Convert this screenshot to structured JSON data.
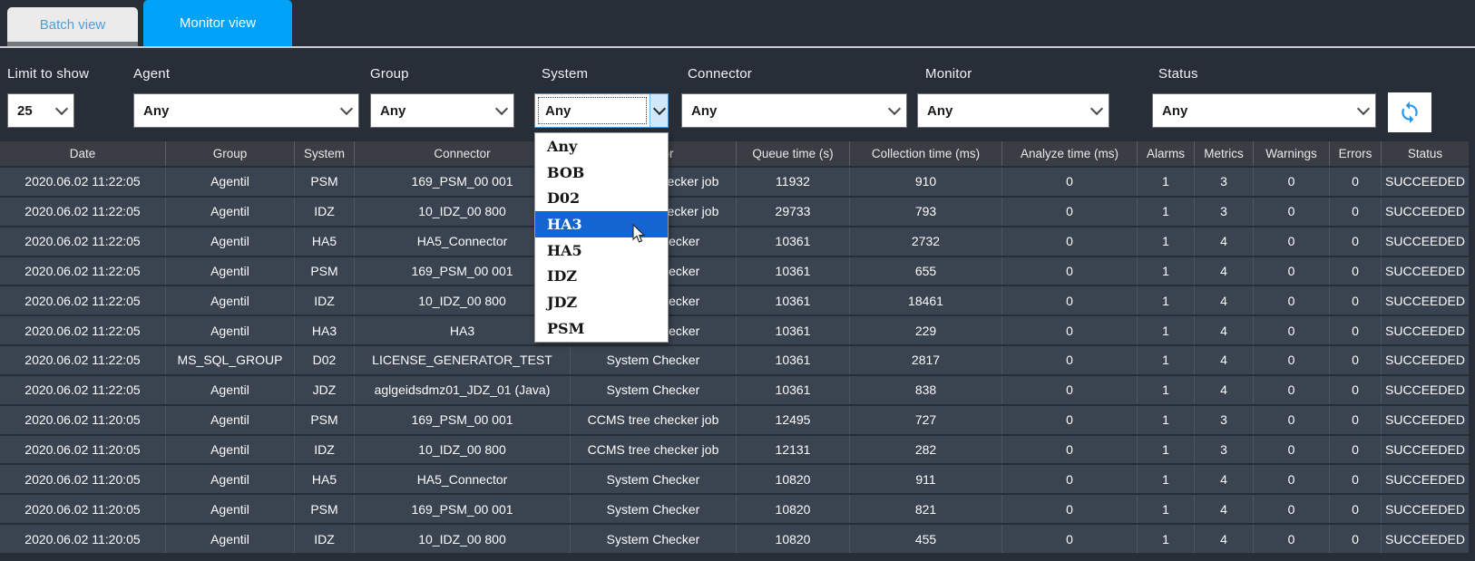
{
  "tabs": {
    "batch": "Batch view",
    "monitor": "Monitor view"
  },
  "filters": {
    "limit": {
      "label": "Limit to show",
      "value": "25"
    },
    "agent": {
      "label": "Agent",
      "value": "Any"
    },
    "group": {
      "label": "Group",
      "value": "Any"
    },
    "system": {
      "label": "System",
      "value": "Any",
      "open": true,
      "options": [
        "Any",
        "BOB",
        "D02",
        "HA3",
        "HA5",
        "IDZ",
        "JDZ",
        "PSM"
      ],
      "highlighted": "HA3"
    },
    "connector": {
      "label": "Connector",
      "value": "Any"
    },
    "monitor": {
      "label": "Monitor",
      "value": "Any"
    },
    "status": {
      "label": "Status",
      "value": "Any"
    },
    "refresh_icon": "refresh-sync-arrows"
  },
  "table": {
    "columns": [
      "Date",
      "Group",
      "System",
      "Connector",
      "Monitor",
      "Queue time (s)",
      "Collection time (ms)",
      "Analyze time (ms)",
      "Alarms",
      "Metrics",
      "Warnings",
      "Errors",
      "Status"
    ],
    "rows": [
      [
        "2020.06.02 11:22:05",
        "Agentil",
        "PSM",
        "169_PSM_00 001",
        "CCMS tree checker job",
        "11932",
        "910",
        "0",
        "1",
        "3",
        "0",
        "0",
        "SUCCEEDED"
      ],
      [
        "2020.06.02 11:22:05",
        "Agentil",
        "IDZ",
        "10_IDZ_00 800",
        "CCMS tree checker job",
        "29733",
        "793",
        "0",
        "1",
        "3",
        "0",
        "0",
        "SUCCEEDED"
      ],
      [
        "2020.06.02 11:22:05",
        "Agentil",
        "HA5",
        "HA5_Connector",
        "System Checker",
        "10361",
        "2732",
        "0",
        "1",
        "4",
        "0",
        "0",
        "SUCCEEDED"
      ],
      [
        "2020.06.02 11:22:05",
        "Agentil",
        "PSM",
        "169_PSM_00 001",
        "System Checker",
        "10361",
        "655",
        "0",
        "1",
        "4",
        "0",
        "0",
        "SUCCEEDED"
      ],
      [
        "2020.06.02 11:22:05",
        "Agentil",
        "IDZ",
        "10_IDZ_00 800",
        "System Checker",
        "10361",
        "18461",
        "0",
        "1",
        "4",
        "0",
        "0",
        "SUCCEEDED"
      ],
      [
        "2020.06.02 11:22:05",
        "Agentil",
        "HA3",
        "HA3",
        "System Checker",
        "10361",
        "229",
        "0",
        "1",
        "4",
        "0",
        "0",
        "SUCCEEDED"
      ],
      [
        "2020.06.02 11:22:05",
        "MS_SQL_GROUP",
        "D02",
        "LICENSE_GENERATOR_TEST",
        "System Checker",
        "10361",
        "2817",
        "0",
        "1",
        "4",
        "0",
        "0",
        "SUCCEEDED"
      ],
      [
        "2020.06.02 11:22:05",
        "Agentil",
        "JDZ",
        "aglgeidsdmz01_JDZ_01 (Java)",
        "System Checker",
        "10361",
        "838",
        "0",
        "1",
        "4",
        "0",
        "0",
        "SUCCEEDED"
      ],
      [
        "2020.06.02 11:20:05",
        "Agentil",
        "PSM",
        "169_PSM_00 001",
        "CCMS tree checker job",
        "12495",
        "727",
        "0",
        "1",
        "3",
        "0",
        "0",
        "SUCCEEDED"
      ],
      [
        "2020.06.02 11:20:05",
        "Agentil",
        "IDZ",
        "10_IDZ_00 800",
        "CCMS tree checker job",
        "12131",
        "282",
        "0",
        "1",
        "3",
        "0",
        "0",
        "SUCCEEDED"
      ],
      [
        "2020.06.02 11:20:05",
        "Agentil",
        "HA5",
        "HA5_Connector",
        "System Checker",
        "10820",
        "911",
        "0",
        "1",
        "4",
        "0",
        "0",
        "SUCCEEDED"
      ],
      [
        "2020.06.02 11:20:05",
        "Agentil",
        "PSM",
        "169_PSM_00 001",
        "System Checker",
        "10820",
        "821",
        "0",
        "1",
        "4",
        "0",
        "0",
        "SUCCEEDED"
      ],
      [
        "2020.06.02 11:20:05",
        "Agentil",
        "IDZ",
        "10_IDZ_00 800",
        "System Checker",
        "10820",
        "455",
        "0",
        "1",
        "4",
        "0",
        "0",
        "SUCCEEDED"
      ]
    ]
  },
  "colors": {
    "page_bg": "#272e38",
    "active_tab_blue": "#00a2f8",
    "inactive_tab_bg": "#ebebeb",
    "inactive_tab_text": "#4aa0dc",
    "row_bg": "#3a4350",
    "header_bg": "#3a3e44",
    "dropdown_highlight": "#1464d2",
    "refresh_icon_blue": "#2196f3"
  }
}
